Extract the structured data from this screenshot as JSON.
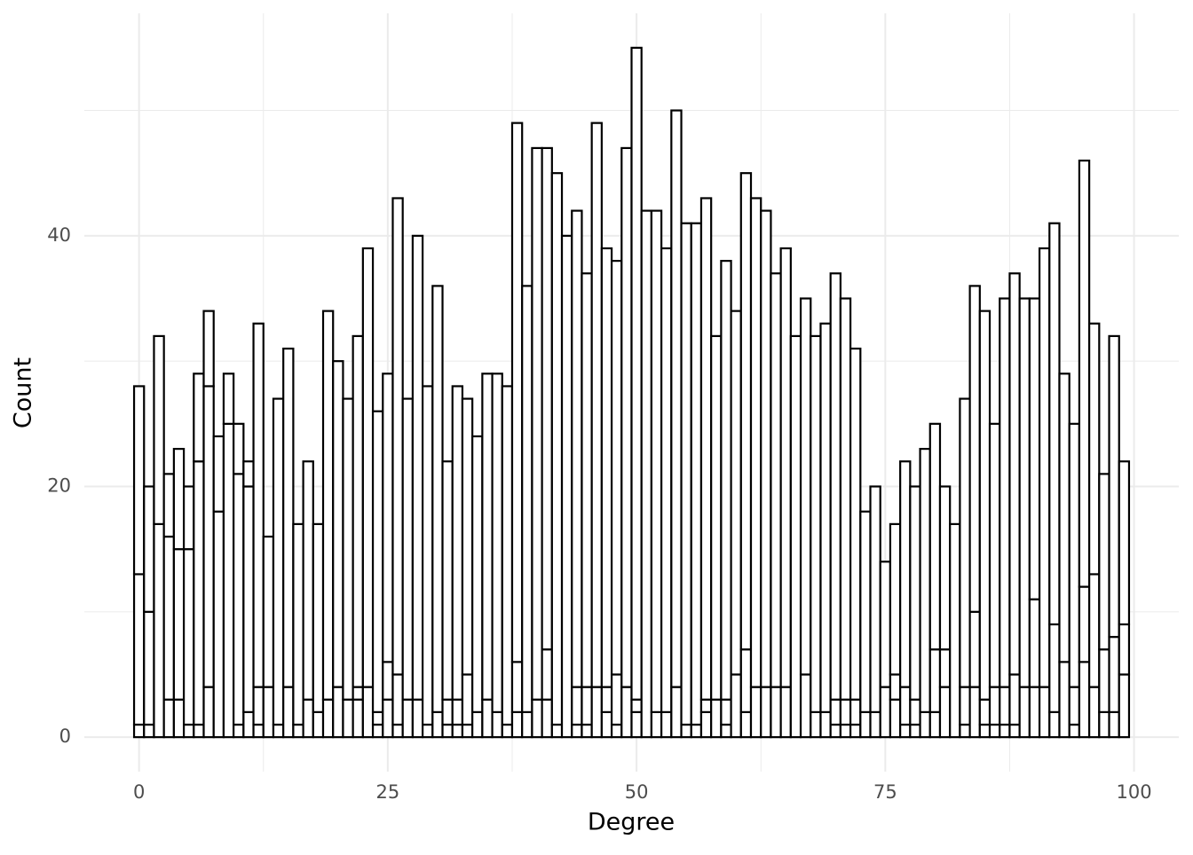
{
  "chart_data": {
    "type": "histogram",
    "xlabel": "Degree",
    "ylabel": "Count",
    "bins": [
      -0.5,
      0.5,
      1.5,
      2.5,
      3.5,
      4.5,
      5.5,
      6.5,
      7.5,
      8.5,
      9.5,
      10.5,
      11.5,
      12.5,
      13.5,
      14.5,
      15.5,
      16.5,
      17.5,
      18.5,
      19.5,
      20.5,
      21.5,
      22.5,
      23.5,
      24.5,
      25.5,
      26.5,
      27.5,
      28.5,
      29.5,
      30.5,
      31.5,
      32.5,
      33.5,
      34.5,
      35.5,
      36.5,
      37.5,
      38.5,
      39.5,
      40.5,
      41.5,
      42.5,
      43.5,
      44.5,
      45.5,
      46.5,
      47.5,
      48.5,
      49.5,
      50.5,
      51.5,
      52.5,
      53.5,
      54.5,
      55.5,
      56.5,
      57.5,
      58.5,
      59.5,
      60.5,
      61.5,
      62.5,
      63.5,
      64.5,
      65.5,
      66.5,
      67.5,
      68.5,
      69.5,
      70.5,
      71.5,
      72.5,
      73.5,
      74.5,
      75.5,
      76.5,
      77.5,
      78.5,
      79.5,
      80.5,
      81.5,
      82.5,
      83.5,
      84.5,
      85.5,
      86.5,
      87.5,
      88.5,
      89.5,
      90.5,
      91.5,
      92.5,
      93.5,
      94.5,
      95.5,
      96.5,
      97.5,
      98.5,
      99.5
    ],
    "series": [
      {
        "color": "#ffffff",
        "values": [
          1,
          1,
          0,
          3,
          3,
          1,
          1,
          4,
          0,
          0,
          1,
          2,
          1,
          0,
          0,
          0,
          0,
          0,
          0,
          0,
          0,
          0,
          3,
          0,
          1,
          3,
          1,
          0,
          0,
          0,
          0,
          1,
          1,
          1,
          0,
          0,
          0,
          0,
          2,
          0,
          0,
          3,
          0,
          0,
          1,
          1,
          0,
          2,
          1,
          0,
          2,
          0,
          0,
          0,
          0,
          0,
          0,
          2,
          0,
          1,
          0,
          2,
          0,
          0,
          0,
          0,
          0,
          0,
          0,
          0,
          1,
          1,
          1,
          0,
          0,
          0,
          3,
          1,
          1,
          0,
          2,
          4,
          0,
          1,
          4,
          1,
          1,
          1,
          1,
          0,
          4,
          0,
          2,
          0,
          1,
          6,
          4,
          2,
          2,
          5
        ]
      },
      {
        "color": "#ffffff",
        "values": [
          12,
          9,
          17,
          13,
          12,
          14,
          21,
          24,
          18,
          25,
          20,
          18,
          3,
          4,
          1,
          4,
          1,
          3,
          2,
          3,
          4,
          3,
          1,
          4,
          1,
          3,
          4,
          3,
          3,
          1,
          2,
          2,
          2,
          4,
          2,
          3,
          2,
          1,
          4,
          2,
          3,
          4,
          1,
          0,
          3,
          3,
          4,
          2,
          4,
          4,
          1,
          0,
          2,
          2,
          4,
          1,
          1,
          1,
          3,
          2,
          5,
          5,
          4,
          4,
          4,
          4,
          0,
          5,
          2,
          2,
          2,
          2,
          2,
          2,
          2,
          4,
          2,
          3,
          2,
          2,
          5,
          3,
          0,
          3,
          6,
          2,
          3,
          3,
          4,
          4,
          7,
          4,
          7,
          6,
          3,
          6,
          9,
          5,
          6,
          4
        ]
      },
      {
        "color": "#ffffff",
        "values": [
          15,
          10,
          15,
          5,
          8,
          5,
          7,
          6,
          6,
          4,
          4,
          2,
          29,
          12,
          26,
          27,
          16,
          19,
          15,
          31,
          26,
          24,
          28,
          35,
          24,
          23,
          38,
          24,
          37,
          27,
          34,
          19,
          25,
          22,
          22,
          26,
          27,
          27,
          43,
          34,
          44,
          40,
          44,
          40,
          38,
          33,
          45,
          35,
          33,
          43,
          52,
          42,
          40,
          37,
          46,
          40,
          40,
          40,
          29,
          35,
          29,
          38,
          39,
          38,
          33,
          35,
          32,
          30,
          30,
          31,
          34,
          32,
          28,
          16,
          18,
          10,
          12,
          18,
          17,
          21,
          18,
          13,
          17,
          23,
          26,
          31,
          21,
          31,
          32,
          31,
          24,
          35,
          32,
          23,
          21,
          34,
          20,
          14,
          24,
          13
        ]
      }
    ],
    "edgecolor": "#000000",
    "xlim": [
      -5.5,
      104.5
    ],
    "xticks": [
      0,
      25,
      50,
      75,
      100
    ],
    "ylim": [
      -2.75,
      57.75
    ],
    "yticks": [
      0,
      20,
      40
    ],
    "grid": true
  }
}
